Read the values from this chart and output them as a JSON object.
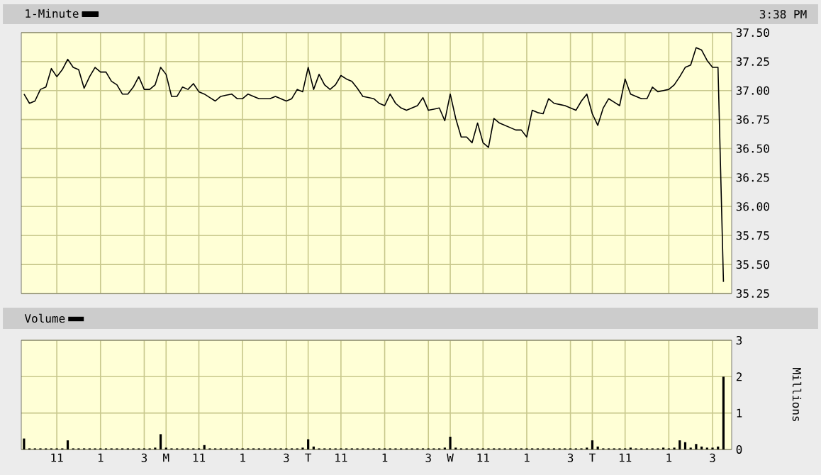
{
  "chart_data": [
    {
      "type": "line",
      "legend": "top left",
      "grid": true,
      "tick_labels": "y",
      "annotations": [
        "3:38 PM"
      ],
      "categories": [
        null,
        null,
        null,
        null,
        null,
        null,
        null,
        null,
        null,
        null,
        null,
        null,
        null,
        null,
        null,
        null,
        null,
        null,
        null,
        null,
        null,
        null,
        null,
        null,
        null,
        null,
        null,
        null,
        null,
        null,
        null,
        null,
        null,
        null,
        null,
        null,
        null,
        null,
        null,
        null,
        null,
        null,
        null,
        null,
        null,
        null,
        null,
        null,
        null,
        null,
        null,
        null,
        null,
        null,
        null,
        null,
        null,
        null,
        null,
        null,
        null,
        null,
        null,
        null,
        null,
        null,
        null,
        null,
        null,
        null,
        null,
        null,
        null,
        null,
        null,
        null,
        null,
        null,
        null,
        null,
        null,
        null,
        null,
        null,
        null,
        null,
        null,
        null,
        null,
        null,
        null,
        null,
        null,
        null,
        null,
        null,
        null,
        null,
        null,
        null,
        null,
        null,
        null,
        null,
        null,
        null,
        null,
        null,
        null,
        null,
        null,
        null,
        null,
        null,
        null,
        null,
        null,
        null,
        null,
        null,
        null,
        null,
        null,
        null,
        null,
        null,
        null,
        null,
        null,
        null
      ],
      "series": [
        {
          "name": "1-Minute",
          "color": "#000000",
          "values": [
            36.97,
            36.89,
            36.91,
            37.01,
            37.03,
            37.19,
            37.12,
            37.18,
            37.27,
            37.2,
            37.18,
            37.02,
            37.12,
            37.2,
            37.16,
            37.16,
            37.08,
            37.05,
            36.97,
            36.97,
            37.03,
            37.12,
            37.01,
            37.01,
            37.05,
            37.2,
            37.14,
            36.95,
            36.95,
            37.03,
            37.01,
            37.06,
            36.99,
            36.97,
            36.94,
            36.91,
            36.95,
            36.96,
            36.97,
            36.93,
            36.93,
            36.97,
            36.95,
            36.93,
            36.93,
            36.93,
            36.95,
            36.93,
            36.91,
            36.93,
            37.01,
            36.99,
            37.2,
            37.01,
            37.14,
            37.05,
            37.01,
            37.05,
            37.13,
            37.1,
            37.08,
            37.02,
            36.95,
            36.94,
            36.93,
            36.89,
            36.87,
            36.97,
            36.89,
            36.85,
            36.83,
            36.85,
            36.87,
            36.94,
            36.83,
            36.84,
            36.85,
            36.74,
            36.97,
            36.76,
            36.6,
            36.6,
            36.55,
            36.72,
            36.55,
            36.51,
            36.76,
            36.72,
            36.7,
            36.68,
            36.66,
            36.66,
            36.6,
            36.83,
            36.81,
            36.8,
            36.93,
            36.89,
            36.88,
            36.87,
            36.85,
            36.83,
            36.91,
            36.97,
            36.8,
            36.7,
            36.85,
            36.93,
            36.9,
            36.87,
            37.1,
            36.97,
            36.95,
            36.93,
            36.93,
            37.03,
            36.99,
            37.0,
            37.01,
            37.05,
            37.12,
            37.2,
            37.22,
            37.37,
            37.35,
            37.26,
            37.2,
            37.2,
            35.35,
            null
          ]
        }
      ],
      "ylim": [
        35.25,
        37.5
      ],
      "yticks": [
        35.25,
        {
          "value": 35.5,
          "label": "35.50"
        },
        35.75,
        {
          "value": 36,
          "label": "36.00"
        },
        36.25,
        {
          "value": 36.5,
          "label": "36.50"
        },
        36.75,
        {
          "value": 37,
          "label": "37.00"
        },
        37.25,
        {
          "value": 37.5,
          "label": "37.50"
        }
      ]
    },
    {
      "type": "bar",
      "legend": "top left",
      "grid": true,
      "ylabel": "Millions",
      "categories": [
        null,
        null,
        null,
        null,
        null,
        null,
        "11",
        null,
        null,
        null,
        null,
        null,
        null,
        null,
        "1",
        null,
        null,
        null,
        null,
        null,
        null,
        null,
        "3",
        null,
        null,
        null,
        "M",
        null,
        null,
        null,
        null,
        null,
        "11",
        null,
        null,
        null,
        null,
        null,
        null,
        null,
        "1",
        null,
        null,
        null,
        null,
        null,
        null,
        null,
        "3",
        null,
        null,
        null,
        "T",
        null,
        null,
        null,
        null,
        null,
        "11",
        null,
        null,
        null,
        null,
        null,
        null,
        null,
        "1",
        null,
        null,
        null,
        null,
        null,
        null,
        null,
        "3",
        null,
        null,
        null,
        "W",
        null,
        null,
        null,
        null,
        null,
        "11",
        null,
        null,
        null,
        null,
        null,
        null,
        null,
        "1",
        null,
        null,
        null,
        null,
        null,
        null,
        null,
        "3",
        null,
        null,
        null,
        "T",
        null,
        null,
        null,
        null,
        null,
        "11",
        null,
        null,
        null,
        null,
        null,
        null,
        null,
        "1",
        null,
        null,
        null,
        null,
        null,
        null,
        null,
        "3",
        null,
        null,
        null
      ],
      "series": [
        {
          "name": "Volume",
          "color": "#000000",
          "values": [
            0.3,
            0.03,
            0.03,
            0.03,
            0.03,
            0.03,
            0.03,
            0.03,
            0.25,
            0.03,
            0.03,
            0.03,
            0.03,
            0.03,
            0.03,
            0.03,
            0.03,
            0.03,
            0.03,
            0.03,
            0.03,
            0.03,
            0.03,
            0.03,
            0.05,
            0.42,
            0.05,
            0.03,
            0.03,
            0.03,
            0.03,
            0.03,
            0.03,
            0.12,
            0.03,
            0.03,
            0.03,
            0.03,
            0.03,
            0.03,
            0.03,
            0.03,
            0.03,
            0.03,
            0.03,
            0.03,
            0.03,
            0.03,
            0.03,
            0.03,
            0.03,
            0.05,
            0.28,
            0.08,
            0.03,
            0.03,
            0.03,
            0.03,
            0.03,
            0.03,
            0.03,
            0.03,
            0.03,
            0.03,
            0.03,
            0.03,
            0.03,
            0.03,
            0.03,
            0.03,
            0.03,
            0.03,
            0.03,
            0.03,
            0.03,
            0.03,
            0.03,
            0.05,
            0.35,
            0.05,
            0.03,
            0.03,
            0.03,
            0.03,
            0.03,
            0.03,
            0.03,
            0.03,
            0.03,
            0.03,
            0.03,
            0.03,
            0.03,
            0.03,
            0.03,
            0.03,
            0.03,
            0.03,
            0.03,
            0.03,
            0.03,
            0.03,
            0.03,
            0.05,
            0.25,
            0.08,
            0.03,
            0.03,
            0.03,
            0.03,
            0.03,
            0.05,
            0.03,
            0.03,
            0.03,
            0.03,
            0.03,
            0.05,
            0.03,
            0.05,
            0.25,
            0.2,
            0.05,
            0.15,
            0.08,
            0.05,
            0.05,
            0.08,
            2.0,
            null
          ]
        }
      ],
      "ylim": [
        0,
        3
      ],
      "yticks": [
        0,
        1,
        2,
        3
      ]
    }
  ]
}
